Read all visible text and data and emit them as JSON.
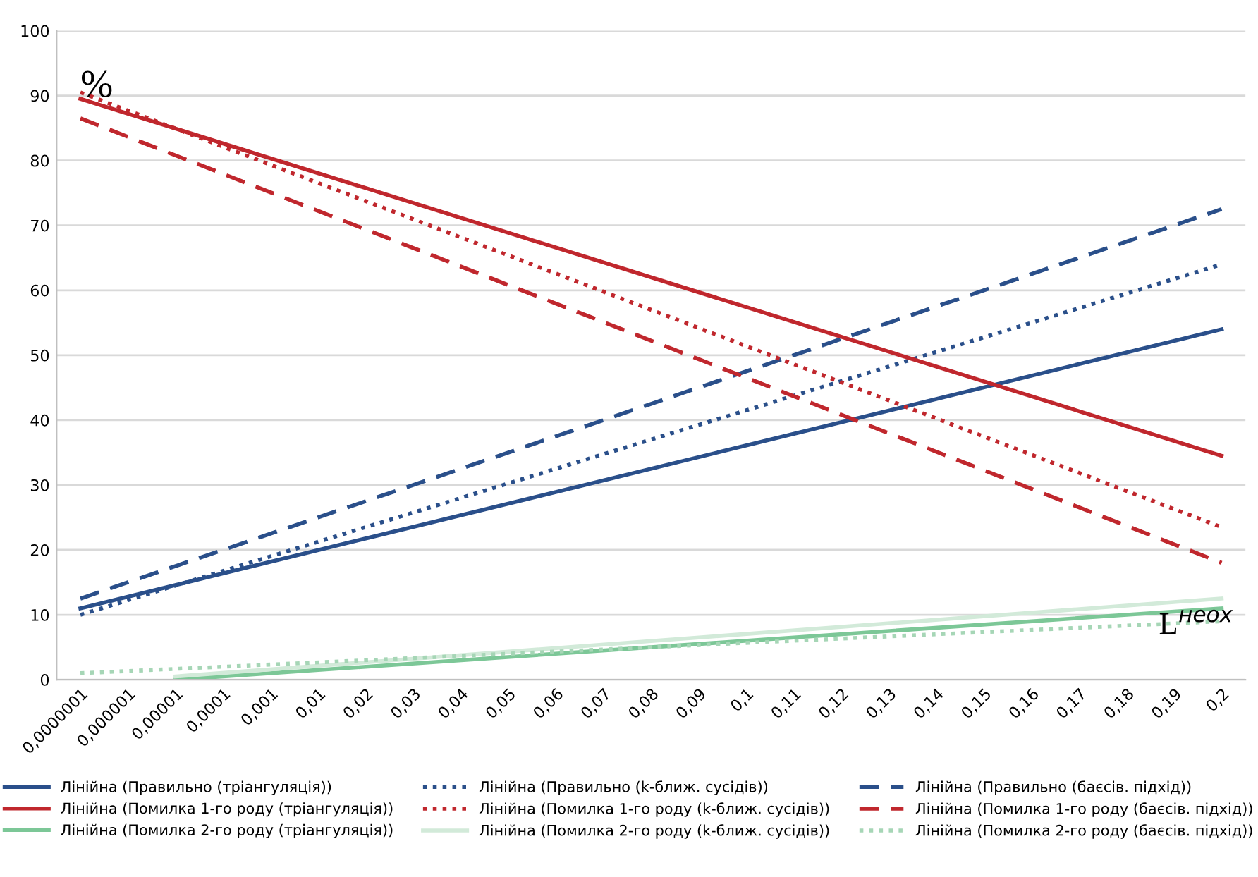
{
  "chart_data": {
    "type": "line",
    "categories": [
      "0,0000001",
      "0,000001",
      "0,00001",
      "0,0001",
      "0,001",
      "0,01",
      "0,02",
      "0,03",
      "0,04",
      "0,05",
      "0,06",
      "0,07",
      "0,08",
      "0,09",
      "0,1",
      "0,11",
      "0,12",
      "0,13",
      "0,14",
      "0,15",
      "0,16",
      "0,17",
      "0,18",
      "0,19",
      "0,2"
    ],
    "series": [
      {
        "name": "Лінійна (Правильно (тріангуляція))",
        "color": "#2a4f8a",
        "line_style": "solid",
        "x": [
          "0,0000001",
          "0,2"
        ],
        "values": [
          11,
          54
        ]
      },
      {
        "name": "Лінійна (Правильно (k-ближ. сусідів))",
        "color": "#2a4f8a",
        "line_style": "dotted",
        "x": [
          "0,0000001",
          "0,2"
        ],
        "values": [
          10,
          64
        ]
      },
      {
        "name": "Лінійна (Правильно (баєсів. підхід))",
        "color": "#2a4f8a",
        "line_style": "dashed",
        "x": [
          "0,0000001",
          "0,2"
        ],
        "values": [
          12.5,
          72.5
        ]
      },
      {
        "name": "Лінійна (Помилка 1-го роду (тріангуляція))",
        "color": "#c0272d",
        "line_style": "solid",
        "x": [
          "0,0000001",
          "0,2"
        ],
        "values": [
          89.5,
          34.5
        ]
      },
      {
        "name": "Лінійна (Помилка 1-го роду (k-ближ. сусідів))",
        "color": "#c0272d",
        "line_style": "dotted",
        "x": [
          "0,0000001",
          "0,2"
        ],
        "values": [
          90.5,
          23.5
        ]
      },
      {
        "name": "Лінійна (Помилка 1-го роду (баєсів. підхід))",
        "color": "#c0272d",
        "line_style": "dashed",
        "x": [
          "0,0000001",
          "0,2"
        ],
        "values": [
          86.5,
          18
        ]
      },
      {
        "name": "Лінійна (Помилка 2-го роду (тріангуляція))",
        "color": "#7cc797",
        "line_style": "solid",
        "x": [
          "0,00001",
          "0,2"
        ],
        "values": [
          0,
          11
        ]
      },
      {
        "name": "Лінійна (Помилка 2-го роду (k-ближ. сусідів))",
        "color": "#d2ead9",
        "line_style": "solid",
        "x": [
          "0,00001",
          "0,2"
        ],
        "values": [
          0.5,
          12.5
        ]
      },
      {
        "name": "Лінійна (Помилка 2-го роду (баєсів. підхід))",
        "color": "#a6d6b6",
        "line_style": "dotted",
        "x": [
          "0,0000001",
          "0,2"
        ],
        "values": [
          1,
          9
        ]
      }
    ],
    "ylim": [
      0,
      100
    ],
    "yticks": [
      0,
      10,
      20,
      30,
      40,
      50,
      60,
      70,
      80,
      90,
      100
    ],
    "grid": "y",
    "legend": "bottom",
    "marker": "none",
    "annotations": [
      "%",
      "L$^{неох}$"
    ]
  }
}
